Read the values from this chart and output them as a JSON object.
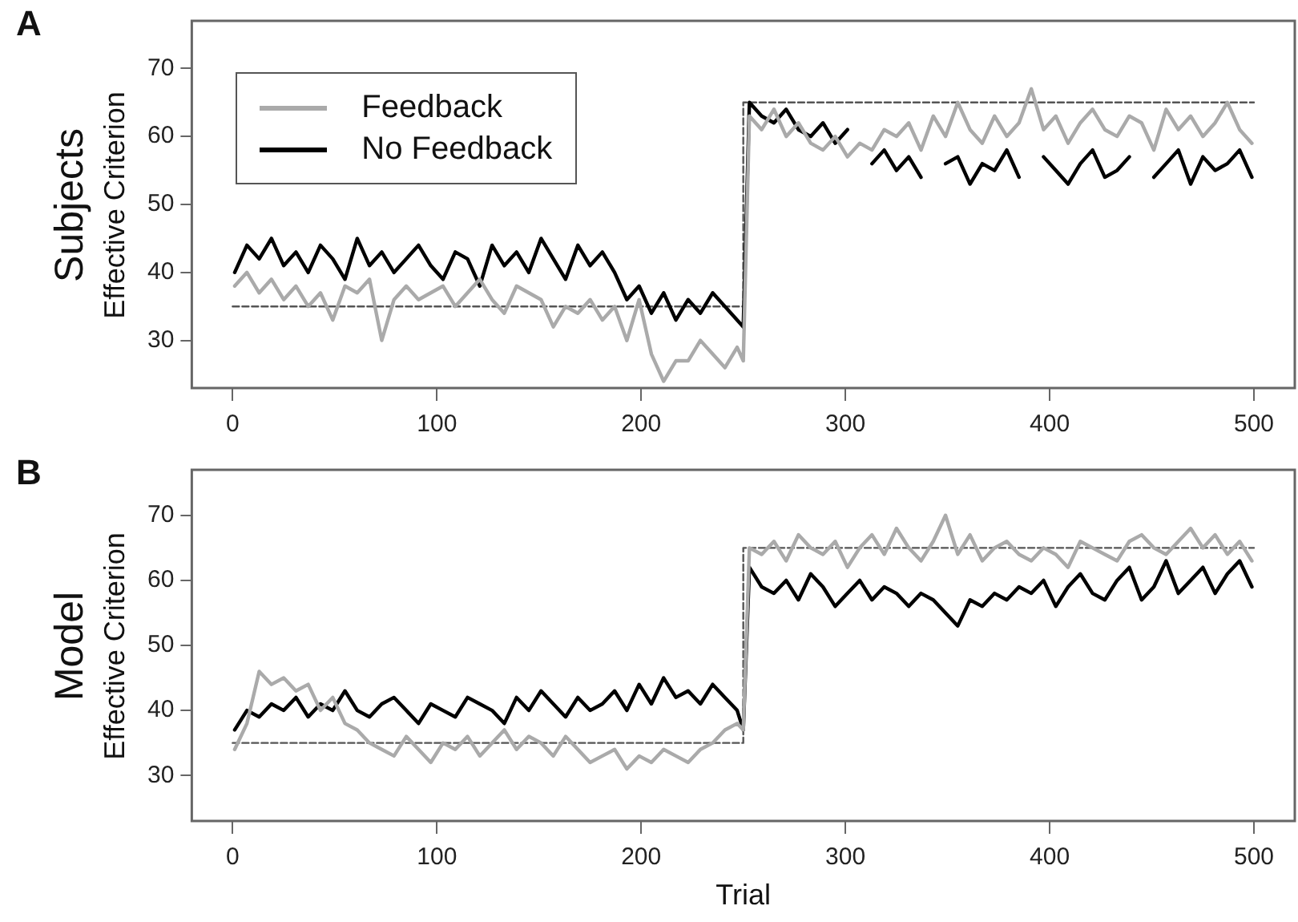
{
  "chart_data": [
    {
      "type": "line",
      "title": "A",
      "subtitle": "Subjects",
      "ylabel": "Effective Criterion",
      "legend": "top left",
      "grid": false,
      "marker": "none",
      "line_style": "solid",
      "x": [
        1,
        7,
        13,
        19,
        25,
        31,
        37,
        43,
        49,
        55,
        61,
        67,
        73,
        79,
        85,
        91,
        97,
        103,
        109,
        115,
        121,
        127,
        133,
        139,
        145,
        151,
        157,
        163,
        169,
        175,
        181,
        187,
        193,
        199,
        205,
        211,
        217,
        223,
        229,
        235,
        241,
        247,
        250,
        253,
        259,
        265,
        271,
        277,
        283,
        289,
        295,
        301,
        307,
        313,
        319,
        325,
        331,
        337,
        343,
        349,
        355,
        361,
        367,
        373,
        379,
        385,
        391,
        397,
        403,
        409,
        415,
        421,
        427,
        433,
        439,
        445,
        451,
        457,
        463,
        469,
        475,
        481,
        487,
        493,
        499
      ],
      "xlim": [
        -20,
        520
      ],
      "xticks": [
        0,
        100,
        200,
        300,
        400,
        500
      ],
      "ylim": [
        23,
        77
      ],
      "yticks": [
        30,
        40,
        50,
        60,
        70
      ],
      "series": [
        {
          "name": "Feedback",
          "color": "#aaaaaa",
          "values": [
            38,
            40,
            37,
            39,
            36,
            38,
            35,
            37,
            33,
            38,
            37,
            39,
            30,
            36,
            38,
            36,
            37,
            38,
            35,
            37,
            39,
            36,
            34,
            38,
            37,
            36,
            32,
            35,
            34,
            36,
            33,
            35,
            30,
            36,
            28,
            24,
            27,
            27,
            30,
            28,
            26,
            29,
            27,
            63,
            61,
            64,
            60,
            62,
            59,
            58,
            60,
            57,
            59,
            58,
            61,
            60,
            62,
            58,
            63,
            60,
            65,
            61,
            59,
            63,
            60,
            62,
            67,
            61,
            63,
            59,
            62,
            64,
            61,
            60,
            63,
            62,
            58,
            64,
            61,
            63,
            60,
            62,
            65,
            61,
            59
          ]
        },
        {
          "name": "No Feedback",
          "color": "#000000",
          "values": [
            40,
            44,
            42,
            45,
            41,
            43,
            40,
            44,
            42,
            39,
            45,
            41,
            43,
            40,
            42,
            44,
            41,
            39,
            43,
            42,
            38,
            44,
            41,
            43,
            40,
            45,
            42,
            39,
            44,
            41,
            43,
            40,
            36,
            38,
            34,
            37,
            33,
            36,
            34,
            37,
            35,
            33,
            32,
            65,
            63,
            62,
            64,
            61,
            60,
            62,
            59,
            61,
            null,
            56,
            58,
            55,
            57,
            54,
            null,
            56,
            57,
            53,
            56,
            55,
            58,
            54,
            null,
            57,
            55,
            53,
            56,
            58,
            54,
            55,
            57,
            null,
            54,
            56,
            58,
            53,
            57,
            55,
            56,
            58,
            54
          ]
        },
        {
          "color": "#555555",
          "line_style": "dashed",
          "x": [
            0,
            250,
            250,
            500
          ],
          "values": [
            35,
            35,
            65,
            65
          ]
        }
      ]
    },
    {
      "type": "line",
      "title": "B",
      "subtitle": "Model",
      "ylabel": "Effective Criterion",
      "xlabel": "Trial",
      "legend": false,
      "grid": false,
      "marker": "none",
      "line_style": "solid",
      "x": [
        1,
        7,
        13,
        19,
        25,
        31,
        37,
        43,
        49,
        55,
        61,
        67,
        73,
        79,
        85,
        91,
        97,
        103,
        109,
        115,
        121,
        127,
        133,
        139,
        145,
        151,
        157,
        163,
        169,
        175,
        181,
        187,
        193,
        199,
        205,
        211,
        217,
        223,
        229,
        235,
        241,
        247,
        250,
        253,
        259,
        265,
        271,
        277,
        283,
        289,
        295,
        301,
        307,
        313,
        319,
        325,
        331,
        337,
        343,
        349,
        355,
        361,
        367,
        373,
        379,
        385,
        391,
        397,
        403,
        409,
        415,
        421,
        427,
        433,
        439,
        445,
        451,
        457,
        463,
        469,
        475,
        481,
        487,
        493,
        499
      ],
      "xlim": [
        -20,
        520
      ],
      "xticks": [
        0,
        100,
        200,
        300,
        400,
        500
      ],
      "ylim": [
        23,
        77
      ],
      "yticks": [
        30,
        40,
        50,
        60,
        70
      ],
      "series": [
        {
          "color": "#aaaaaa",
          "values": [
            34,
            38,
            46,
            44,
            45,
            43,
            44,
            40,
            42,
            38,
            37,
            35,
            34,
            33,
            36,
            34,
            32,
            35,
            34,
            36,
            33,
            35,
            37,
            34,
            36,
            35,
            33,
            36,
            34,
            32,
            33,
            34,
            31,
            33,
            32,
            34,
            33,
            32,
            34,
            35,
            37,
            38,
            37,
            65,
            64,
            66,
            63,
            67,
            65,
            64,
            66,
            62,
            65,
            67,
            64,
            68,
            65,
            63,
            66,
            70,
            64,
            67,
            63,
            65,
            66,
            64,
            63,
            65,
            64,
            62,
            66,
            65,
            64,
            63,
            66,
            67,
            65,
            64,
            66,
            68,
            65,
            67,
            64,
            66,
            63
          ]
        },
        {
          "color": "#000000",
          "values": [
            37,
            40,
            39,
            41,
            40,
            42,
            39,
            41,
            40,
            43,
            40,
            39,
            41,
            42,
            40,
            38,
            41,
            40,
            39,
            42,
            41,
            40,
            38,
            42,
            40,
            43,
            41,
            39,
            42,
            40,
            41,
            43,
            40,
            44,
            41,
            45,
            42,
            43,
            41,
            44,
            42,
            40,
            37,
            62,
            59,
            58,
            60,
            57,
            61,
            59,
            56,
            58,
            60,
            57,
            59,
            58,
            56,
            58,
            57,
            55,
            53,
            57,
            56,
            58,
            57,
            59,
            58,
            60,
            56,
            59,
            61,
            58,
            57,
            60,
            62,
            57,
            59,
            63,
            58,
            60,
            62,
            58,
            61,
            63,
            59
          ]
        },
        {
          "color": "#555555",
          "line_style": "dashed",
          "x": [
            0,
            250,
            250,
            500
          ],
          "values": [
            35,
            35,
            65,
            65
          ]
        }
      ]
    }
  ]
}
